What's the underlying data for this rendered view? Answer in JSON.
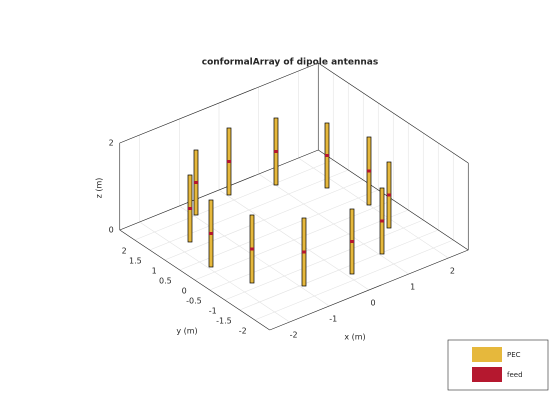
{
  "title": "conformalArray of dipole antennas",
  "axes": {
    "x": {
      "label": "x (m)",
      "ticks": [
        -2,
        -1,
        0,
        1,
        2
      ]
    },
    "y": {
      "label": "y (m)",
      "ticks": [
        -2,
        -1.5,
        -1,
        -0.5,
        0,
        0.5,
        1,
        1.5,
        2
      ]
    },
    "z": {
      "label": "z (m)",
      "ticks": [
        0,
        2
      ]
    }
  },
  "legend": [
    {
      "label": "PEC",
      "color": "#e6b83c"
    },
    {
      "label": "feed",
      "color": "#b5182f"
    }
  ]
}
